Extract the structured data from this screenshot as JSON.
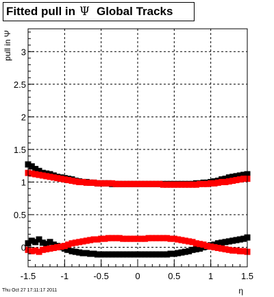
{
  "title": {
    "prefix": "Fitted pull in",
    "symbol": "Ψ",
    "suffix": "Global Tracks"
  },
  "timestamp": "Thu Oct 27 17:11:17 2011",
  "chart_data": {
    "type": "scatter",
    "xlabel": "η",
    "ylabel": "pull in Ψ",
    "xlim": [
      -1.5,
      1.5
    ],
    "ylim": [
      -0.3,
      3.35
    ],
    "grid": true,
    "x_ticks": [
      "-1.5",
      "-1",
      "-0.5",
      "0",
      "0.5",
      "1",
      "1.5"
    ],
    "y_ticks": [
      "0",
      "0.5",
      "1",
      "1.5",
      "2",
      "2.5",
      "3"
    ],
    "series": [
      {
        "color": "#000000",
        "role": "width",
        "points": [
          [
            -1.5,
            1.27
          ],
          [
            -1.45,
            1.24
          ],
          [
            -1.4,
            1.2
          ],
          [
            -1.35,
            1.17
          ],
          [
            -1.3,
            1.14
          ],
          [
            -1.25,
            1.13
          ],
          [
            -1.2,
            1.12
          ],
          [
            -1.15,
            1.1
          ],
          [
            -1.1,
            1.08
          ],
          [
            -1.05,
            1.07
          ],
          [
            -1.0,
            1.06
          ],
          [
            -0.95,
            1.05
          ],
          [
            -0.9,
            1.04
          ],
          [
            -0.85,
            1.02
          ],
          [
            -0.8,
            1.01
          ],
          [
            -0.75,
            1.0
          ],
          [
            -0.7,
            1.0
          ],
          [
            -0.65,
            0.99
          ],
          [
            -0.6,
            0.99
          ],
          [
            -0.55,
            0.98
          ],
          [
            -0.5,
            0.98
          ],
          [
            -0.45,
            0.98
          ],
          [
            -0.4,
            0.98
          ],
          [
            -0.35,
            0.97
          ],
          [
            -0.3,
            0.97
          ],
          [
            -0.25,
            0.97
          ],
          [
            -0.2,
            0.97
          ],
          [
            -0.15,
            0.97
          ],
          [
            -0.1,
            0.97
          ],
          [
            -0.05,
            0.97
          ],
          [
            0.0,
            0.97
          ],
          [
            0.05,
            0.97
          ],
          [
            0.1,
            0.97
          ],
          [
            0.15,
            0.97
          ],
          [
            0.2,
            0.97
          ],
          [
            0.25,
            0.97
          ],
          [
            0.3,
            0.97
          ],
          [
            0.35,
            0.97
          ],
          [
            0.4,
            0.97
          ],
          [
            0.45,
            0.97
          ],
          [
            0.5,
            0.97
          ],
          [
            0.55,
            0.97
          ],
          [
            0.6,
            0.97
          ],
          [
            0.65,
            0.97
          ],
          [
            0.7,
            0.97
          ],
          [
            0.75,
            0.97
          ],
          [
            0.8,
            0.98
          ],
          [
            0.85,
            0.98
          ],
          [
            0.9,
            0.99
          ],
          [
            0.95,
            0.99
          ],
          [
            1.0,
            1.0
          ],
          [
            1.05,
            1.01
          ],
          [
            1.1,
            1.02
          ],
          [
            1.15,
            1.04
          ],
          [
            1.2,
            1.05
          ],
          [
            1.25,
            1.07
          ],
          [
            1.3,
            1.08
          ],
          [
            1.35,
            1.09
          ],
          [
            1.4,
            1.1
          ],
          [
            1.45,
            1.11
          ],
          [
            1.5,
            1.12
          ]
        ]
      },
      {
        "color": "#ff0000",
        "role": "width",
        "points": [
          [
            -1.5,
            1.14
          ],
          [
            -1.45,
            1.13
          ],
          [
            -1.4,
            1.12
          ],
          [
            -1.35,
            1.11
          ],
          [
            -1.3,
            1.1
          ],
          [
            -1.25,
            1.09
          ],
          [
            -1.2,
            1.08
          ],
          [
            -1.15,
            1.07
          ],
          [
            -1.1,
            1.06
          ],
          [
            -1.05,
            1.05
          ],
          [
            -1.0,
            1.04
          ],
          [
            -0.95,
            1.03
          ],
          [
            -0.9,
            1.02
          ],
          [
            -0.85,
            1.01
          ],
          [
            -0.8,
            1.0
          ],
          [
            -0.75,
            1.0
          ],
          [
            -0.7,
            0.99
          ],
          [
            -0.65,
            0.99
          ],
          [
            -0.6,
            0.99
          ],
          [
            -0.55,
            0.98
          ],
          [
            -0.5,
            0.98
          ],
          [
            -0.45,
            0.98
          ],
          [
            -0.4,
            0.98
          ],
          [
            -0.35,
            0.98
          ],
          [
            -0.3,
            0.97
          ],
          [
            -0.25,
            0.97
          ],
          [
            -0.2,
            0.97
          ],
          [
            -0.15,
            0.97
          ],
          [
            -0.1,
            0.97
          ],
          [
            -0.05,
            0.97
          ],
          [
            0.0,
            0.97
          ],
          [
            0.05,
            0.97
          ],
          [
            0.1,
            0.97
          ],
          [
            0.15,
            0.97
          ],
          [
            0.2,
            0.97
          ],
          [
            0.25,
            0.97
          ],
          [
            0.3,
            0.97
          ],
          [
            0.35,
            0.96
          ],
          [
            0.4,
            0.96
          ],
          [
            0.45,
            0.96
          ],
          [
            0.5,
            0.96
          ],
          [
            0.55,
            0.96
          ],
          [
            0.6,
            0.96
          ],
          [
            0.65,
            0.96
          ],
          [
            0.7,
            0.96
          ],
          [
            0.75,
            0.96
          ],
          [
            0.8,
            0.96
          ],
          [
            0.85,
            0.97
          ],
          [
            0.9,
            0.97
          ],
          [
            0.95,
            0.97
          ],
          [
            1.0,
            0.98
          ],
          [
            1.05,
            0.98
          ],
          [
            1.1,
            0.99
          ],
          [
            1.15,
            1.0
          ],
          [
            1.2,
            1.0
          ],
          [
            1.25,
            1.01
          ],
          [
            1.3,
            1.02
          ],
          [
            1.35,
            1.03
          ],
          [
            1.4,
            1.04
          ],
          [
            1.45,
            1.05
          ],
          [
            1.5,
            1.05
          ]
        ]
      },
      {
        "color": "#000000",
        "role": "mean",
        "points": [
          [
            -1.5,
            0.06
          ],
          [
            -1.45,
            0.1
          ],
          [
            -1.4,
            0.08
          ],
          [
            -1.35,
            0.12
          ],
          [
            -1.3,
            0.07
          ],
          [
            -1.25,
            0.05
          ],
          [
            -1.2,
            0.08
          ],
          [
            -1.15,
            0.04
          ],
          [
            -1.1,
            0.02
          ],
          [
            -1.05,
            0.0
          ],
          [
            -1.0,
            -0.02
          ],
          [
            -0.95,
            -0.04
          ],
          [
            -0.9,
            -0.06
          ],
          [
            -0.85,
            -0.07
          ],
          [
            -0.8,
            -0.08
          ],
          [
            -0.75,
            -0.09
          ],
          [
            -0.7,
            -0.09
          ],
          [
            -0.65,
            -0.1
          ],
          [
            -0.6,
            -0.1
          ],
          [
            -0.55,
            -0.11
          ],
          [
            -0.5,
            -0.11
          ],
          [
            -0.45,
            -0.11
          ],
          [
            -0.4,
            -0.11
          ],
          [
            -0.35,
            -0.11
          ],
          [
            -0.3,
            -0.11
          ],
          [
            -0.25,
            -0.11
          ],
          [
            -0.2,
            -0.11
          ],
          [
            -0.15,
            -0.11
          ],
          [
            -0.1,
            -0.11
          ],
          [
            -0.05,
            -0.11
          ],
          [
            0.0,
            -0.11
          ],
          [
            0.05,
            -0.11
          ],
          [
            0.1,
            -0.11
          ],
          [
            0.15,
            -0.11
          ],
          [
            0.2,
            -0.11
          ],
          [
            0.25,
            -0.11
          ],
          [
            0.3,
            -0.11
          ],
          [
            0.35,
            -0.11
          ],
          [
            0.4,
            -0.11
          ],
          [
            0.45,
            -0.1
          ],
          [
            0.5,
            -0.1
          ],
          [
            0.55,
            -0.09
          ],
          [
            0.6,
            -0.08
          ],
          [
            0.65,
            -0.07
          ],
          [
            0.7,
            -0.06
          ],
          [
            0.75,
            -0.04
          ],
          [
            0.8,
            -0.03
          ],
          [
            0.85,
            -0.02
          ],
          [
            0.9,
            0.0
          ],
          [
            0.95,
            0.01
          ],
          [
            1.0,
            0.03
          ],
          [
            1.05,
            0.04
          ],
          [
            1.1,
            0.06
          ],
          [
            1.15,
            0.07
          ],
          [
            1.2,
            0.08
          ],
          [
            1.25,
            0.09
          ],
          [
            1.3,
            0.1
          ],
          [
            1.35,
            0.11
          ],
          [
            1.4,
            0.12
          ],
          [
            1.45,
            0.13
          ],
          [
            1.5,
            0.15
          ]
        ]
      },
      {
        "color": "#ff0000",
        "role": "mean",
        "points": [
          [
            -1.5,
            -0.04
          ],
          [
            -1.45,
            -0.06
          ],
          [
            -1.4,
            -0.05
          ],
          [
            -1.35,
            -0.07
          ],
          [
            -1.3,
            -0.04
          ],
          [
            -1.25,
            -0.03
          ],
          [
            -1.2,
            -0.02
          ],
          [
            -1.15,
            -0.01
          ],
          [
            -1.1,
            0.0
          ],
          [
            -1.05,
            0.01
          ],
          [
            -1.0,
            0.02
          ],
          [
            -0.95,
            0.04
          ],
          [
            -0.9,
            0.06
          ],
          [
            -0.85,
            0.07
          ],
          [
            -0.8,
            0.08
          ],
          [
            -0.75,
            0.09
          ],
          [
            -0.7,
            0.1
          ],
          [
            -0.65,
            0.11
          ],
          [
            -0.6,
            0.12
          ],
          [
            -0.55,
            0.12
          ],
          [
            -0.5,
            0.13
          ],
          [
            -0.45,
            0.13
          ],
          [
            -0.4,
            0.14
          ],
          [
            -0.35,
            0.14
          ],
          [
            -0.3,
            0.14
          ],
          [
            -0.25,
            0.14
          ],
          [
            -0.2,
            0.13
          ],
          [
            -0.15,
            0.13
          ],
          [
            -0.1,
            0.13
          ],
          [
            -0.05,
            0.13
          ],
          [
            0.0,
            0.13
          ],
          [
            0.05,
            0.13
          ],
          [
            0.1,
            0.13
          ],
          [
            0.15,
            0.14
          ],
          [
            0.2,
            0.14
          ],
          [
            0.25,
            0.14
          ],
          [
            0.3,
            0.14
          ],
          [
            0.35,
            0.14
          ],
          [
            0.4,
            0.14
          ],
          [
            0.45,
            0.13
          ],
          [
            0.5,
            0.13
          ],
          [
            0.55,
            0.12
          ],
          [
            0.6,
            0.11
          ],
          [
            0.65,
            0.1
          ],
          [
            0.7,
            0.09
          ],
          [
            0.75,
            0.08
          ],
          [
            0.8,
            0.06
          ],
          [
            0.85,
            0.05
          ],
          [
            0.9,
            0.04
          ],
          [
            0.95,
            0.02
          ],
          [
            1.0,
            0.01
          ],
          [
            1.05,
            0.0
          ],
          [
            1.1,
            -0.01
          ],
          [
            1.15,
            -0.02
          ],
          [
            1.2,
            -0.03
          ],
          [
            1.25,
            -0.04
          ],
          [
            1.3,
            -0.05
          ],
          [
            1.35,
            -0.05
          ],
          [
            1.4,
            -0.06
          ],
          [
            1.45,
            -0.06
          ],
          [
            1.5,
            -0.07
          ]
        ]
      }
    ]
  }
}
